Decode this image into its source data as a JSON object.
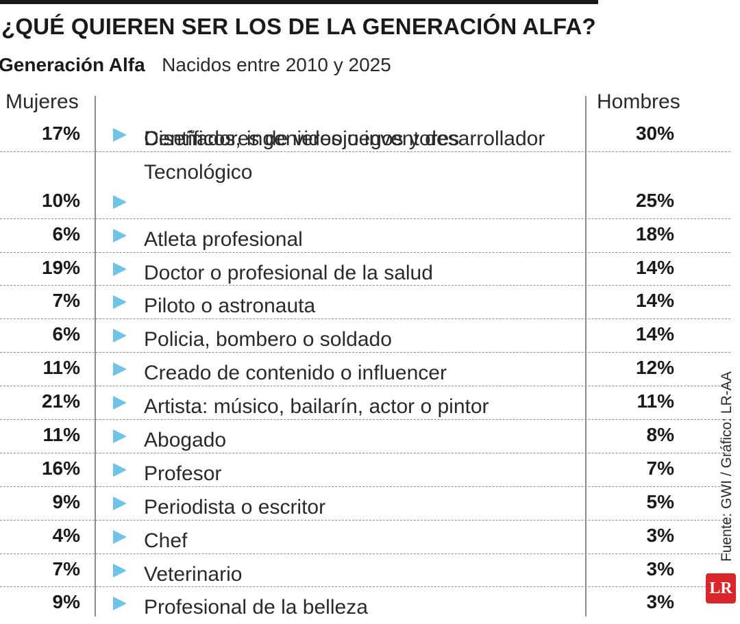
{
  "title": "¿QUÉ QUIEREN SER LOS DE LA GENERACIÓN ALFA?",
  "subtitle": "Generación Alfa",
  "subtitle_note": "Nacidos entre 2010 y 2025",
  "source": "Fuente: GWI / Gráfico: LR-AA",
  "logo_text": "LR",
  "colors": {
    "arrow": "#6ec3e8",
    "logo": "#d8262a",
    "text": "#1a1a1a"
  },
  "chart_data": {
    "type": "table",
    "title": "¿QUÉ QUIEREN SER LOS DE LA GENERACIÓN ALFA?",
    "columns": [
      "Mujeres",
      "",
      "Hombres"
    ],
    "rows": [
      {
        "women": "17%",
        "label": "Centíficos, ingenieros o inventores",
        "men": "30%"
      },
      {
        "women": "10%",
        "label": "Tecnológico",
        "label_line1": "Diseñadores de videojuegos y desarrollador",
        "men": "25%"
      },
      {
        "women": "6%",
        "label": "Atleta profesional",
        "men": "18%"
      },
      {
        "women": "19%",
        "label": "Doctor o profesional de la salud",
        "men": "14%"
      },
      {
        "women": "7%",
        "label": "Piloto o astronauta",
        "men": "14%"
      },
      {
        "women": "6%",
        "label": "Policia, bombero o soldado",
        "men": "14%"
      },
      {
        "women": "11%",
        "label": "Creado de contenido o influencer",
        "men": "12%"
      },
      {
        "women": "21%",
        "label": "Artista: músico, bailarín, actor o pintor",
        "men": "11%"
      },
      {
        "women": "11%",
        "label": "Abogado",
        "men": "8%"
      },
      {
        "women": "16%",
        "label": "Profesor",
        "men": "7%"
      },
      {
        "women": "9%",
        "label": "Periodista o escritor",
        "men": "5%"
      },
      {
        "women": "4%",
        "label": "Chef",
        "men": "3%"
      },
      {
        "women": "7%",
        "label": "Veterinario",
        "men": "3%"
      },
      {
        "women": "9%",
        "label": "Profesional de la belleza",
        "men": "3%"
      }
    ]
  }
}
